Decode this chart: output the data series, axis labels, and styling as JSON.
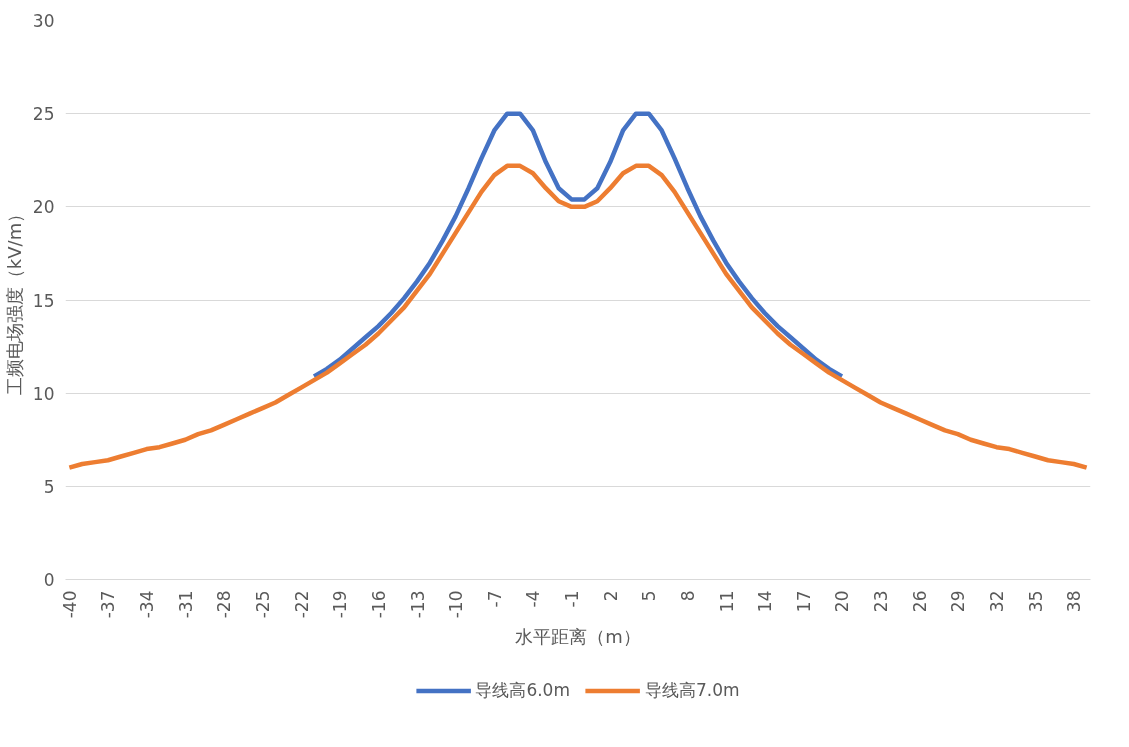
{
  "chart_data": {
    "type": "line",
    "xlabel": "水平距离（m）",
    "ylabel": "工频电场强度（kV/m）",
    "categories": [
      "-40",
      null,
      null,
      "-37",
      null,
      null,
      "-34",
      null,
      null,
      "-31",
      null,
      null,
      "-28",
      null,
      null,
      "-25",
      null,
      null,
      "-22",
      null,
      null,
      "-19",
      null,
      null,
      "-16",
      null,
      null,
      "-13",
      null,
      null,
      "-10",
      null,
      null,
      "-7",
      null,
      null,
      "-4",
      null,
      null,
      "-1",
      null,
      null,
      "2",
      null,
      null,
      "5",
      null,
      null,
      "8",
      null,
      null,
      "11",
      null,
      null,
      "14",
      null,
      null,
      "17",
      null,
      null,
      "20",
      null,
      null,
      "23",
      null,
      null,
      "26",
      null,
      null,
      "29",
      null,
      null,
      "32",
      null,
      null,
      "35",
      null,
      null,
      "38",
      null
    ],
    "series": [
      {
        "name": "导线高6.0m",
        "color": "#4472c4",
        "values": [
          null,
          null,
          null,
          null,
          null,
          null,
          null,
          null,
          null,
          null,
          null,
          null,
          null,
          null,
          null,
          null,
          null,
          null,
          null,
          10.9,
          11.3,
          11.8,
          12.4,
          13.0,
          13.6,
          14.3,
          15.1,
          16.0,
          17.0,
          18.2,
          19.5,
          21.0,
          22.6,
          24.1,
          25.0,
          25.0,
          24.1,
          22.4,
          21.0,
          20.4,
          20.4,
          21.0,
          22.4,
          24.1,
          25.0,
          25.0,
          24.1,
          22.6,
          21.0,
          19.5,
          18.2,
          17.0,
          16.0,
          15.1,
          14.3,
          13.6,
          13.0,
          12.4,
          11.8,
          11.3,
          10.9,
          null,
          null,
          null,
          null,
          null,
          null,
          null,
          null,
          null,
          null,
          null,
          null,
          null,
          null,
          null,
          null,
          null,
          null,
          null
        ]
      },
      {
        "name": "导线高7.0m",
        "color": "#ed7d31",
        "values": [
          6.0,
          6.2,
          6.3,
          6.4,
          6.6,
          6.8,
          7.0,
          7.1,
          7.3,
          7.5,
          7.8,
          8.0,
          8.3,
          8.6,
          8.9,
          9.2,
          9.5,
          9.9,
          10.3,
          10.7,
          11.1,
          11.6,
          12.1,
          12.6,
          13.2,
          13.9,
          14.6,
          15.5,
          16.4,
          17.5,
          18.6,
          19.7,
          20.8,
          21.7,
          22.2,
          22.2,
          21.8,
          21.0,
          20.3,
          20.0,
          20.0,
          20.3,
          21.0,
          21.8,
          22.2,
          22.2,
          21.7,
          20.8,
          19.7,
          18.6,
          17.5,
          16.4,
          15.5,
          14.6,
          13.9,
          13.2,
          12.6,
          12.1,
          11.6,
          11.1,
          10.7,
          10.3,
          9.9,
          9.5,
          9.2,
          8.9,
          8.6,
          8.3,
          8.0,
          7.8,
          7.5,
          7.3,
          7.1,
          7.0,
          6.8,
          6.6,
          6.4,
          6.3,
          6.2,
          6.0
        ]
      }
    ],
    "ylim": [
      0,
      30
    ],
    "yticks": [
      0,
      5,
      10,
      15,
      20,
      25,
      30
    ],
    "grid": "y",
    "legend": "bottom",
    "line_style": "solid",
    "marker": "none"
  }
}
